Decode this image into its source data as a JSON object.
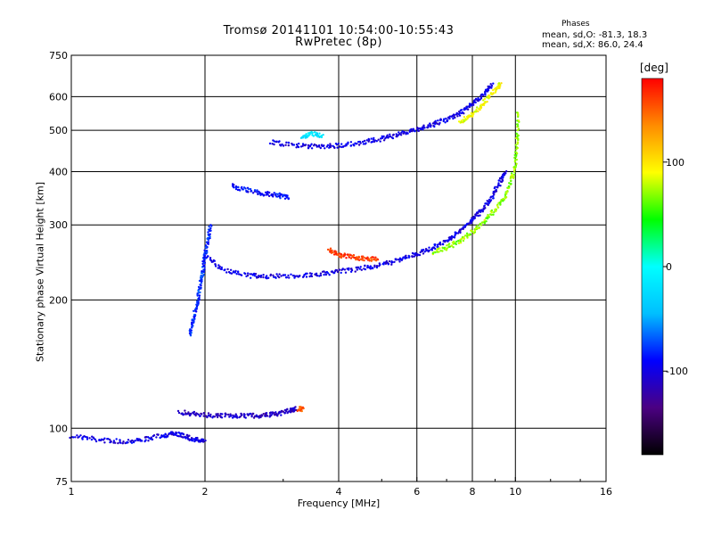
{
  "header": {
    "title": "Tromsø 20141101 10:54:00-10:55:43",
    "subtitle": "RwPretec (8p)",
    "stats_title": "Phases",
    "stats_o": "mean, sd,O: -81.3, 18.3",
    "stats_x": "mean, sd,X: 86.0, 24.4"
  },
  "colorbar": {
    "title": "[deg]",
    "ticks": [
      "100",
      "0",
      "-100"
    ],
    "tick_values": [
      100,
      0,
      -100
    ],
    "range": [
      -180,
      180
    ],
    "colors": [
      "#000000",
      "#4b0082",
      "#0000ff",
      "#00bfff",
      "#00ffff",
      "#00ff00",
      "#ffff00",
      "#ff8c00",
      "#ff0000"
    ]
  },
  "chart_data": {
    "type": "scatter",
    "title": "Tromsø 20141101 10:54:00-10:55:43",
    "subtitle": "RwPretec (8p)",
    "xlabel": "Frequency [MHz]",
    "ylabel": "Stationary phase Virtual Height [km]",
    "x_scale": "log",
    "y_scale": "log",
    "xlim": [
      1,
      16
    ],
    "ylim": [
      75,
      750
    ],
    "x_ticks": [
      1,
      2,
      4,
      6,
      8,
      10,
      16
    ],
    "x_tick_labels": [
      "1",
      "2",
      "4",
      "6",
      "8",
      "10",
      "16"
    ],
    "y_ticks": [
      75,
      100,
      200,
      300,
      400,
      500,
      600,
      750
    ],
    "y_tick_labels": [
      "75",
      "100",
      "200",
      "300",
      "400",
      "500",
      "600",
      "750"
    ],
    "grid": true,
    "color_variable": "Phase [deg]",
    "traces": [
      {
        "x": [
          1.0,
          1.15,
          1.3,
          1.45,
          1.6,
          1.7,
          1.8,
          1.9,
          2.0
        ],
        "y": [
          96,
          94,
          93,
          94,
          96,
          97,
          96,
          94,
          93
        ],
        "phase": -100
      },
      {
        "x": [
          1.75,
          1.9,
          2.1,
          2.3,
          2.5,
          2.7,
          2.9,
          3.1,
          3.2
        ],
        "y": [
          109,
          108,
          107,
          107,
          107,
          107,
          108,
          110,
          111
        ],
        "phase": -110
      },
      {
        "x": [
          3.25,
          3.32
        ],
        "y": [
          111,
          111
        ],
        "phase": 150
      },
      {
        "x": [
          1.85,
          1.88,
          1.92,
          1.95,
          1.98,
          2.0,
          2.03,
          2.06
        ],
        "y": [
          165,
          180,
          195,
          215,
          235,
          255,
          275,
          300
        ],
        "phase": -80
      },
      {
        "x": [
          2.0,
          2.2,
          2.5,
          2.8,
          3.2,
          3.6,
          4.0,
          4.5,
          5.0,
          5.5,
          6.0,
          6.5,
          7.0,
          7.5,
          8.0,
          8.4,
          8.8,
          9.2,
          9.5
        ],
        "y": [
          255,
          235,
          228,
          227,
          228,
          230,
          233,
          237,
          242,
          248,
          256,
          265,
          276,
          290,
          308,
          325,
          345,
          375,
          400
        ],
        "phase": -100
      },
      {
        "x": [
          6.5,
          7.0,
          7.5,
          8.0,
          8.5,
          9.0,
          9.5,
          9.8,
          10.0,
          10.1,
          10.15
        ],
        "y": [
          258,
          265,
          275,
          288,
          305,
          325,
          350,
          380,
          420,
          480,
          560
        ],
        "phase": 70
      },
      {
        "x": [
          3.8,
          4.0,
          4.3,
          4.6,
          4.9
        ],
        "y": [
          262,
          255,
          252,
          250,
          249
        ],
        "phase": 160
      },
      {
        "x": [
          2.3,
          2.5,
          2.7,
          2.9,
          3.1
        ],
        "y": [
          370,
          362,
          356,
          352,
          349
        ],
        "phase": -90
      },
      {
        "x": [
          2.8,
          3.2,
          3.6,
          4.0,
          4.5,
          5.0,
          5.5,
          6.0,
          6.5,
          7.0,
          7.5,
          8.0,
          8.5,
          8.9
        ],
        "y": [
          470,
          460,
          458,
          460,
          468,
          478,
          490,
          502,
          515,
          530,
          548,
          575,
          610,
          640
        ],
        "phase": -100
      },
      {
        "x": [
          7.5,
          8.0,
          8.5,
          9.0,
          9.3
        ],
        "y": [
          520,
          545,
          580,
          620,
          645
        ],
        "phase": 90
      },
      {
        "x": [
          3.3,
          3.5,
          3.7
        ],
        "y": [
          480,
          492,
          485
        ],
        "phase": -20
      }
    ]
  }
}
